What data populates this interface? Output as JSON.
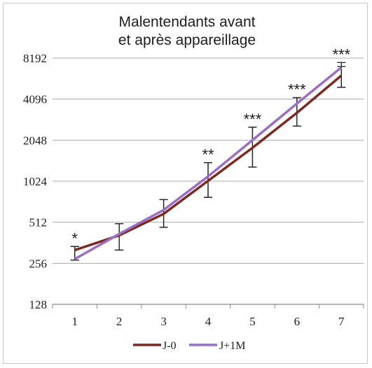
{
  "chart_data": {
    "type": "line",
    "title_lines": [
      "Malentendants avant",
      "et après appareillage"
    ],
    "x": [
      1,
      2,
      3,
      4,
      5,
      6,
      7
    ],
    "y_scale": "log2",
    "y_ticks": [
      128,
      256,
      512,
      1024,
      2048,
      4096,
      8192
    ],
    "ylim": [
      128,
      8192
    ],
    "grid": true,
    "legend_position": "bottom",
    "series": [
      {
        "name": "J-0",
        "color": "#7a2a22",
        "values": [
          320,
          410,
          590,
          1030,
          1800,
          3250,
          6100
        ],
        "error_low": [
          270,
          320,
          470,
          780,
          1300,
          2600,
          5000
        ],
        "error_high": [
          340,
          500,
          750,
          1400,
          2550,
          4200,
          7100
        ]
      },
      {
        "name": "J+1M",
        "color": "#9a6fc2",
        "values": [
          275,
          420,
          630,
          1110,
          2050,
          3800,
          7000
        ],
        "error_low": [
          270,
          320,
          470,
          780,
          1300,
          2600,
          5000
        ],
        "error_high": [
          340,
          500,
          750,
          1400,
          2550,
          4200,
          7600
        ]
      }
    ],
    "significance": [
      "*",
      "",
      "",
      "**",
      "***",
      "***",
      "***"
    ]
  }
}
